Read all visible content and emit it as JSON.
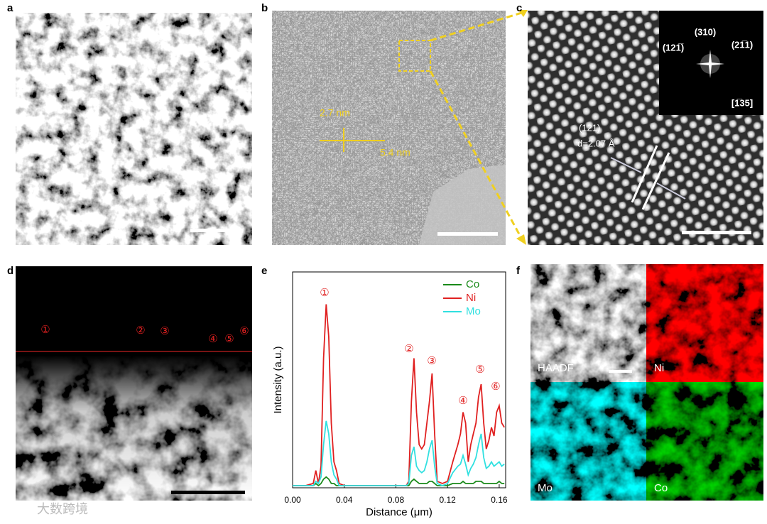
{
  "panels": {
    "labels": [
      "a",
      "b",
      "c",
      "d",
      "e",
      "f"
    ],
    "b": {
      "annotations": [
        "2.7 nm",
        "5.4 nm"
      ]
    },
    "c": {
      "inset": [
        "(310)",
        "(121̅)",
        "(21̅1)",
        "[1̅35]"
      ],
      "plane": "(121)",
      "spacing": "d=2.07 Å"
    },
    "d": {
      "markers": [
        "①",
        "②",
        "③",
        "④",
        "⑤",
        "⑥"
      ]
    },
    "f": {
      "maps": [
        "HAADF",
        "Ni",
        "Mo",
        "Co"
      ]
    }
  },
  "watermark": "大数跨境",
  "chart_data": {
    "type": "line",
    "xlabel": "Distance (μm)",
    "ylabel": "Intensity (a.u.)",
    "x": [
      0,
      0.01,
      0.016,
      0.018,
      0.02,
      0.022,
      0.024,
      0.026,
      0.028,
      0.03,
      0.032,
      0.034,
      0.036,
      0.04,
      0.06,
      0.08,
      0.088,
      0.09,
      0.092,
      0.094,
      0.096,
      0.098,
      0.1,
      0.102,
      0.104,
      0.106,
      0.108,
      0.11,
      0.112,
      0.116,
      0.12,
      0.124,
      0.128,
      0.13,
      0.132,
      0.134,
      0.136,
      0.138,
      0.14,
      0.142,
      0.144,
      0.146,
      0.148,
      0.15,
      0.152,
      0.154,
      0.156,
      0.158,
      0.16,
      0.162,
      0.164
    ],
    "series": [
      {
        "name": "Co",
        "color": "#1a8a1a",
        "values": [
          1,
          1,
          1,
          2,
          1,
          2,
          4,
          5,
          4,
          2,
          2,
          1,
          1,
          1,
          1,
          1,
          1,
          1,
          3,
          4,
          3,
          2,
          2,
          2,
          2,
          3,
          3,
          2,
          1,
          1,
          1,
          2,
          2,
          2,
          3,
          2,
          2,
          2,
          2,
          3,
          3,
          3,
          2,
          2,
          2,
          2,
          2,
          2,
          3,
          2,
          2
        ]
      },
      {
        "name": "Ni",
        "color": "#e02020",
        "values": [
          1,
          1,
          2,
          8,
          2,
          10,
          60,
          85,
          70,
          30,
          12,
          8,
          2,
          1,
          1,
          1,
          1,
          3,
          40,
          60,
          35,
          20,
          18,
          20,
          30,
          40,
          53,
          25,
          3,
          2,
          3,
          12,
          20,
          25,
          35,
          30,
          12,
          20,
          25,
          30,
          42,
          48,
          30,
          18,
          22,
          28,
          24,
          35,
          38,
          30,
          28
        ]
      },
      {
        "name": "Mo",
        "color": "#30e0e0",
        "values": [
          1,
          1,
          1,
          3,
          2,
          5,
          20,
          31,
          25,
          12,
          6,
          4,
          1,
          1,
          1,
          1,
          1,
          2,
          15,
          19,
          10,
          8,
          7,
          8,
          12,
          18,
          22,
          10,
          2,
          1,
          2,
          7,
          10,
          11,
          15,
          11,
          6,
          9,
          11,
          14,
          20,
          25,
          14,
          9,
          10,
          12,
          10,
          11,
          12,
          10,
          11
        ]
      }
    ],
    "annotations": [
      "①",
      "②",
      "③",
      "④",
      "⑤",
      "⑥"
    ],
    "xlim": [
      0,
      0.165
    ],
    "ylim": [
      0,
      100
    ],
    "xticks": [
      {
        "value": 0,
        "label": "0.00"
      },
      0.04,
      0.08,
      0.12,
      0.16
    ],
    "legend": "upper right"
  }
}
